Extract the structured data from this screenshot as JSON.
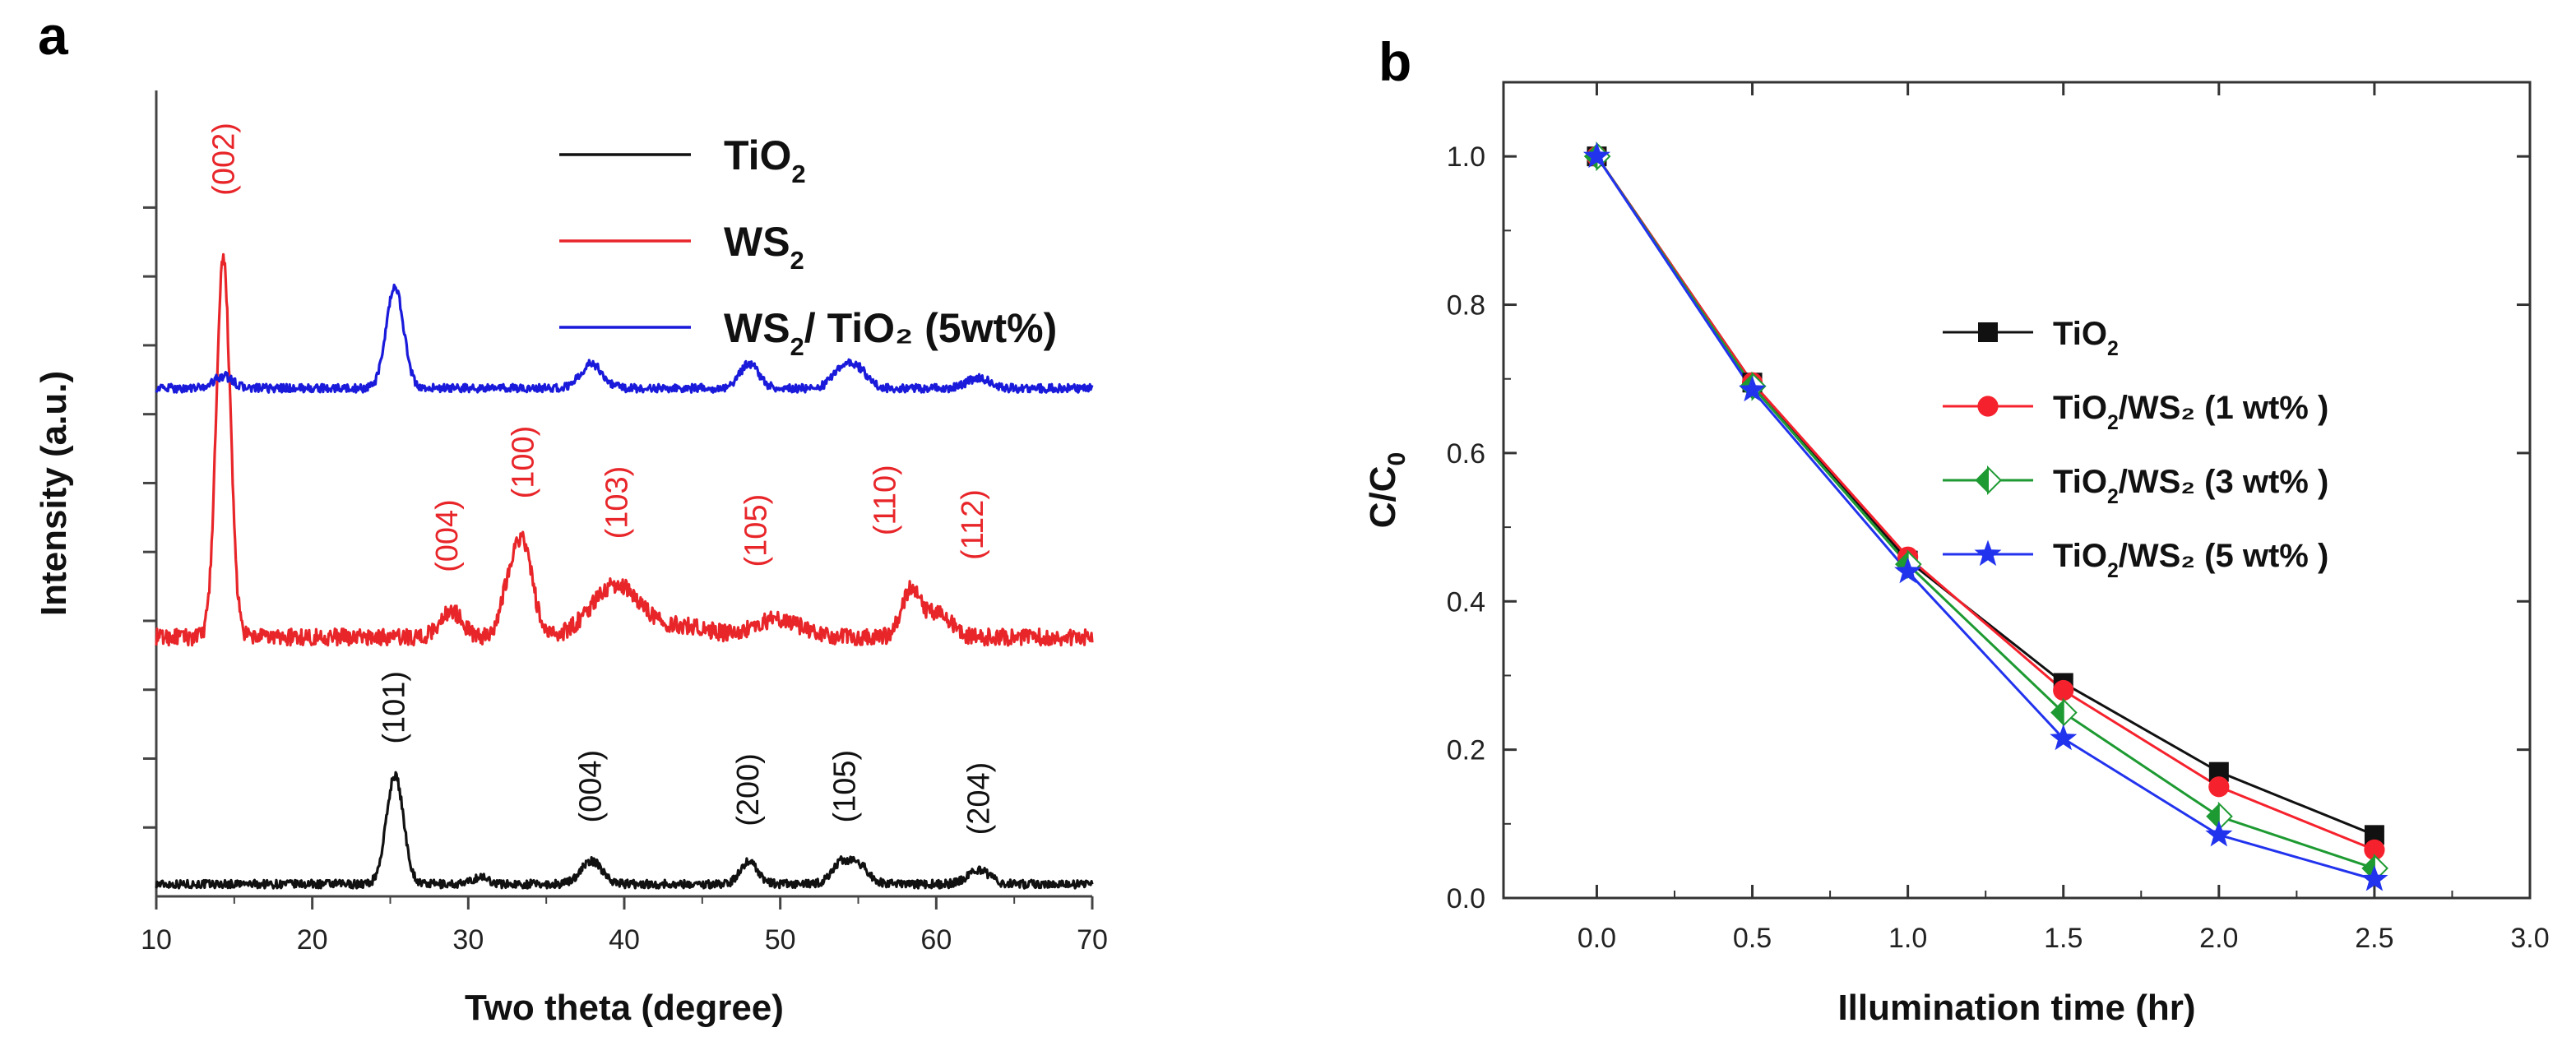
{
  "panels": {
    "a": {
      "letter": "a"
    },
    "b": {
      "letter": "b"
    }
  },
  "chart_data": [
    {
      "type": "line",
      "panel": "a",
      "title": "",
      "xlabel": "Two theta (degree)",
      "ylabel": "Intensity (a.u.)",
      "xlim": [
        10,
        70
      ],
      "xticks": [
        10,
        20,
        30,
        40,
        50,
        60,
        70
      ],
      "yaxis_tick_labels": false,
      "legend_position": "top-right",
      "series": [
        {
          "name": "TiO₂",
          "legend": {
            "base": "TiO",
            "sub": "2",
            "tail": ""
          },
          "color": "#111111",
          "baseline": 0.07,
          "noise": 0.006,
          "peaks": [
            {
              "x": 25.3,
              "h": 0.62,
              "w": 0.55
            },
            {
              "x": 30.8,
              "h": 0.04,
              "w": 0.5
            },
            {
              "x": 37.9,
              "h": 0.13,
              "w": 0.7
            },
            {
              "x": 48.0,
              "h": 0.13,
              "w": 0.55
            },
            {
              "x": 53.9,
              "h": 0.12,
              "w": 0.6
            },
            {
              "x": 55.1,
              "h": 0.1,
              "w": 0.6
            },
            {
              "x": 62.7,
              "h": 0.08,
              "w": 0.7
            }
          ]
        },
        {
          "name": "WS₂",
          "legend": {
            "base": "WS",
            "sub": "2",
            "tail": ""
          },
          "color": "#e8262a",
          "baseline": 1.48,
          "noise": 0.012,
          "peaks": [
            {
              "x": 14.3,
              "h": 2.15,
              "w": 0.45
            },
            {
              "x": 28.9,
              "h": 0.15,
              "w": 0.7
            },
            {
              "x": 32.7,
              "h": 0.28,
              "w": 0.6
            },
            {
              "x": 33.6,
              "h": 0.45,
              "w": 0.6
            },
            {
              "x": 39.5,
              "h": 0.3,
              "w": 1.6
            },
            {
              "x": 44.0,
              "h": 0.06,
              "w": 1.5
            },
            {
              "x": 49.8,
              "h": 0.1,
              "w": 1.5
            },
            {
              "x": 58.4,
              "h": 0.28,
              "w": 0.6
            },
            {
              "x": 60.2,
              "h": 0.15,
              "w": 0.7
            }
          ]
        },
        {
          "name": "WS₂/TiO₂ (5wt%)",
          "legend": {
            "base": "WS",
            "sub": "2",
            "tail": "/ TiO₂ (5wt%)"
          },
          "color": "#1a1adb",
          "baseline": 2.9,
          "noise": 0.006,
          "peaks": [
            {
              "x": 14.3,
              "h": 0.07,
              "w": 0.6
            },
            {
              "x": 25.3,
              "h": 0.58,
              "w": 0.55
            },
            {
              "x": 37.9,
              "h": 0.14,
              "w": 0.7
            },
            {
              "x": 48.0,
              "h": 0.14,
              "w": 0.6
            },
            {
              "x": 54.0,
              "h": 0.12,
              "w": 0.65
            },
            {
              "x": 55.1,
              "h": 0.09,
              "w": 0.6
            },
            {
              "x": 62.7,
              "h": 0.06,
              "w": 0.7
            }
          ]
        }
      ],
      "annotations": [
        {
          "text": "(002)",
          "x": 14.3,
          "color": "#e8262a",
          "level": 4.0
        },
        {
          "text": "(004)",
          "x": 28.6,
          "color": "#e8262a",
          "level": 1.85
        },
        {
          "text": "(100)",
          "x": 33.5,
          "color": "#e8262a",
          "level": 2.27
        },
        {
          "text": "(103)",
          "x": 39.5,
          "color": "#e8262a",
          "level": 2.04
        },
        {
          "text": "(105)",
          "x": 48.4,
          "color": "#e8262a",
          "level": 1.88
        },
        {
          "text": "(110)",
          "x": 56.7,
          "color": "#e8262a",
          "level": 2.06
        },
        {
          "text": "(112)",
          "x": 62.3,
          "color": "#e8262a",
          "level": 1.92
        },
        {
          "text": "(101)",
          "x": 25.2,
          "color": "#111111",
          "level": 0.87
        },
        {
          "text": "(004)",
          "x": 37.8,
          "color": "#111111",
          "level": 0.42
        },
        {
          "text": "(200)",
          "x": 47.9,
          "color": "#111111",
          "level": 0.4
        },
        {
          "text": "(105)",
          "x": 54.1,
          "color": "#111111",
          "level": 0.42
        },
        {
          "text": "(204)",
          "x": 62.7,
          "color": "#111111",
          "level": 0.35
        }
      ]
    },
    {
      "type": "line",
      "panel": "b",
      "title": "",
      "xlabel": "Illumination time (hr)",
      "ylabel": {
        "base": "C/C",
        "sub": "0"
      },
      "xlim": [
        -0.3,
        3.0
      ],
      "ylim": [
        0.0,
        1.1
      ],
      "xticks": [
        0.0,
        0.5,
        1.0,
        1.5,
        2.0,
        2.5,
        3.0
      ],
      "yticks": [
        0.0,
        0.2,
        0.4,
        0.6,
        0.8,
        1.0
      ],
      "legend_position": "center-right",
      "x": [
        0.0,
        0.5,
        1.0,
        1.5,
        2.0,
        2.5
      ],
      "series": [
        {
          "name": "TiO₂",
          "legend": {
            "base": "TiO",
            "sub": "2",
            "tail": ""
          },
          "color": "#111111",
          "marker": "square",
          "values": [
            1.0,
            0.695,
            0.455,
            0.29,
            0.17,
            0.085
          ]
        },
        {
          "name": "TiO₂/WS₂ (1 wt% )",
          "legend": {
            "base": "TiO",
            "sub": "2",
            "tail": "/WS₂ (1 wt% )"
          },
          "color": "#f5222d",
          "marker": "circle",
          "values": [
            1.0,
            0.695,
            0.46,
            0.28,
            0.15,
            0.065
          ]
        },
        {
          "name": "TiO₂/WS₂ (3 wt% )",
          "legend": {
            "base": "TiO",
            "sub": "2",
            "tail": "/WS₂ (3 wt% )"
          },
          "color": "#1e9a32",
          "marker": "diamond",
          "values": [
            1.0,
            0.69,
            0.45,
            0.25,
            0.11,
            0.04
          ]
        },
        {
          "name": "TiO₂/WS₂ (5 wt% )",
          "legend": {
            "base": "TiO",
            "sub": "2",
            "tail": "/WS₂ (5 wt% )"
          },
          "color": "#2233ee",
          "marker": "star",
          "values": [
            1.0,
            0.685,
            0.44,
            0.215,
            0.085,
            0.025
          ]
        }
      ]
    }
  ]
}
